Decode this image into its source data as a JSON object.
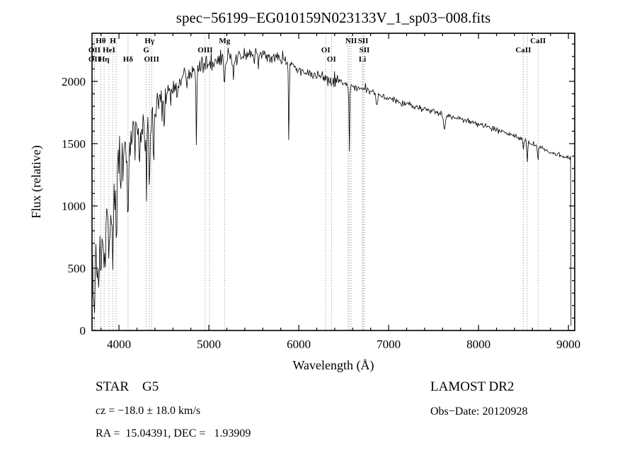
{
  "chart_data": {
    "type": "line",
    "title": "spec−56199−EG010159N023133V_1_sp03−008.fits",
    "xlabel": "Wavelength (Å)",
    "ylabel": "Flux (relative)",
    "xlim": [
      3700,
      9070
    ],
    "ylim": [
      0,
      2386
    ],
    "xticks": [
      4000,
      5000,
      6000,
      7000,
      8000,
      9000
    ],
    "yticks": [
      0,
      500,
      1000,
      1500,
      2000
    ],
    "x_minor_step": 200,
    "y_minor_step": 100,
    "grid": false,
    "legend": "none",
    "continuum": [
      [
        3700,
        420
      ],
      [
        3760,
        560
      ],
      [
        3800,
        680
      ],
      [
        3850,
        780
      ],
      [
        3900,
        920
      ],
      [
        3950,
        1060
      ],
      [
        4000,
        1300
      ],
      [
        4100,
        1450
      ],
      [
        4200,
        1600
      ],
      [
        4300,
        1680
      ],
      [
        4400,
        1760
      ],
      [
        4500,
        1860
      ],
      [
        4600,
        1930
      ],
      [
        4700,
        2010
      ],
      [
        4800,
        2090
      ],
      [
        4900,
        2140
      ],
      [
        5000,
        2170
      ],
      [
        5100,
        2160
      ],
      [
        5200,
        2200
      ],
      [
        5300,
        2180
      ],
      [
        5400,
        2200
      ],
      [
        5500,
        2190
      ],
      [
        5600,
        2210
      ],
      [
        5700,
        2190
      ],
      [
        5800,
        2200
      ],
      [
        5900,
        2150
      ],
      [
        6000,
        2090
      ],
      [
        6100,
        2070
      ],
      [
        6200,
        2050
      ],
      [
        6300,
        2030
      ],
      [
        6400,
        2000
      ],
      [
        6500,
        1985
      ],
      [
        6600,
        1960
      ],
      [
        6700,
        1945
      ],
      [
        6800,
        1920
      ],
      [
        6900,
        1890
      ],
      [
        7000,
        1865
      ],
      [
        7200,
        1815
      ],
      [
        7400,
        1780
      ],
      [
        7600,
        1730
      ],
      [
        7800,
        1695
      ],
      [
        8000,
        1660
      ],
      [
        8200,
        1610
      ],
      [
        8400,
        1560
      ],
      [
        8600,
        1500
      ],
      [
        8800,
        1430
      ],
      [
        9000,
        1385
      ],
      [
        9030,
        1380
      ]
    ],
    "absorption_lines": [
      [
        3727,
        0.25,
        6
      ],
      [
        3750,
        0.3,
        5
      ],
      [
        3798,
        0.4,
        6
      ],
      [
        3835,
        0.45,
        6
      ],
      [
        3889,
        0.4,
        6
      ],
      [
        3933,
        0.5,
        7
      ],
      [
        3968,
        0.45,
        7
      ],
      [
        4045,
        0.2,
        5
      ],
      [
        4101,
        0.4,
        8
      ],
      [
        4227,
        0.2,
        5
      ],
      [
        4304,
        0.18,
        10
      ],
      [
        4340,
        0.35,
        7
      ],
      [
        4383,
        0.2,
        5
      ],
      [
        4861,
        0.28,
        7
      ],
      [
        5175,
        0.12,
        9
      ],
      [
        5270,
        0.08,
        6
      ],
      [
        5890,
        0.3,
        6
      ],
      [
        6563,
        0.27,
        6
      ],
      [
        6870,
        0.05,
        12
      ],
      [
        7620,
        0.06,
        15
      ],
      [
        8498,
        0.06,
        6
      ],
      [
        8542,
        0.1,
        7
      ],
      [
        8662,
        0.08,
        7
      ]
    ],
    "noise_profile": [
      [
        3700,
        130
      ],
      [
        4000,
        95
      ],
      [
        4300,
        75
      ],
      [
        4600,
        55
      ],
      [
        5000,
        40
      ],
      [
        5400,
        32
      ],
      [
        5800,
        28
      ],
      [
        6200,
        24
      ],
      [
        6600,
        20
      ],
      [
        7000,
        16
      ],
      [
        7600,
        13
      ],
      [
        8200,
        11
      ],
      [
        9000,
        9
      ]
    ],
    "line_markers": [
      {
        "wl": 3727,
        "label": "OII",
        "row": 2
      },
      {
        "wl": 3727,
        "label": "OII",
        "row": 3
      },
      {
        "wl": 3798,
        "label": "Hθ",
        "row": 1
      },
      {
        "wl": 3835,
        "label": "Hη",
        "row": 3
      },
      {
        "wl": 3889,
        "label": "HeI",
        "row": 2
      },
      {
        "wl": 3933,
        "label": "H",
        "row": 1
      },
      {
        "wl": 3968,
        "label": "",
        "row": 0
      },
      {
        "wl": 4101,
        "label": "Hδ",
        "row": 3
      },
      {
        "wl": 4304,
        "label": "G",
        "row": 2
      },
      {
        "wl": 4340,
        "label": "Hγ",
        "row": 1
      },
      {
        "wl": 4363,
        "label": "OIII",
        "row": 3
      },
      {
        "wl": 4959,
        "label": "OIII",
        "row": 2
      },
      {
        "wl": 5007,
        "label": "",
        "row": 0
      },
      {
        "wl": 5175,
        "label": "Mg",
        "row": 1
      },
      {
        "wl": 6300,
        "label": "OI",
        "row": 2
      },
      {
        "wl": 6364,
        "label": "OI",
        "row": 3
      },
      {
        "wl": 6548,
        "label": "",
        "row": 0
      },
      {
        "wl": 6563,
        "label": "",
        "row": 0
      },
      {
        "wl": 6583,
        "label": "NII",
        "row": 1
      },
      {
        "wl": 6708,
        "label": "Li",
        "row": 3
      },
      {
        "wl": 6716,
        "label": "SII",
        "row": 1
      },
      {
        "wl": 6731,
        "label": "SII",
        "row": 2
      },
      {
        "wl": 8498,
        "label": "CaII",
        "row": 2
      },
      {
        "wl": 8542,
        "label": "",
        "row": 0
      },
      {
        "wl": 8662,
        "label": "CaII",
        "row": 1
      }
    ]
  },
  "footer": {
    "class_label": "STAR    G5",
    "survey": "LAMOST DR2",
    "cz": "cz = −18.0 ± 18.0 km/s",
    "obs_date": "Obs−Date: 20120928",
    "radec": "RA =  15.04391, DEC =   1.93909"
  }
}
